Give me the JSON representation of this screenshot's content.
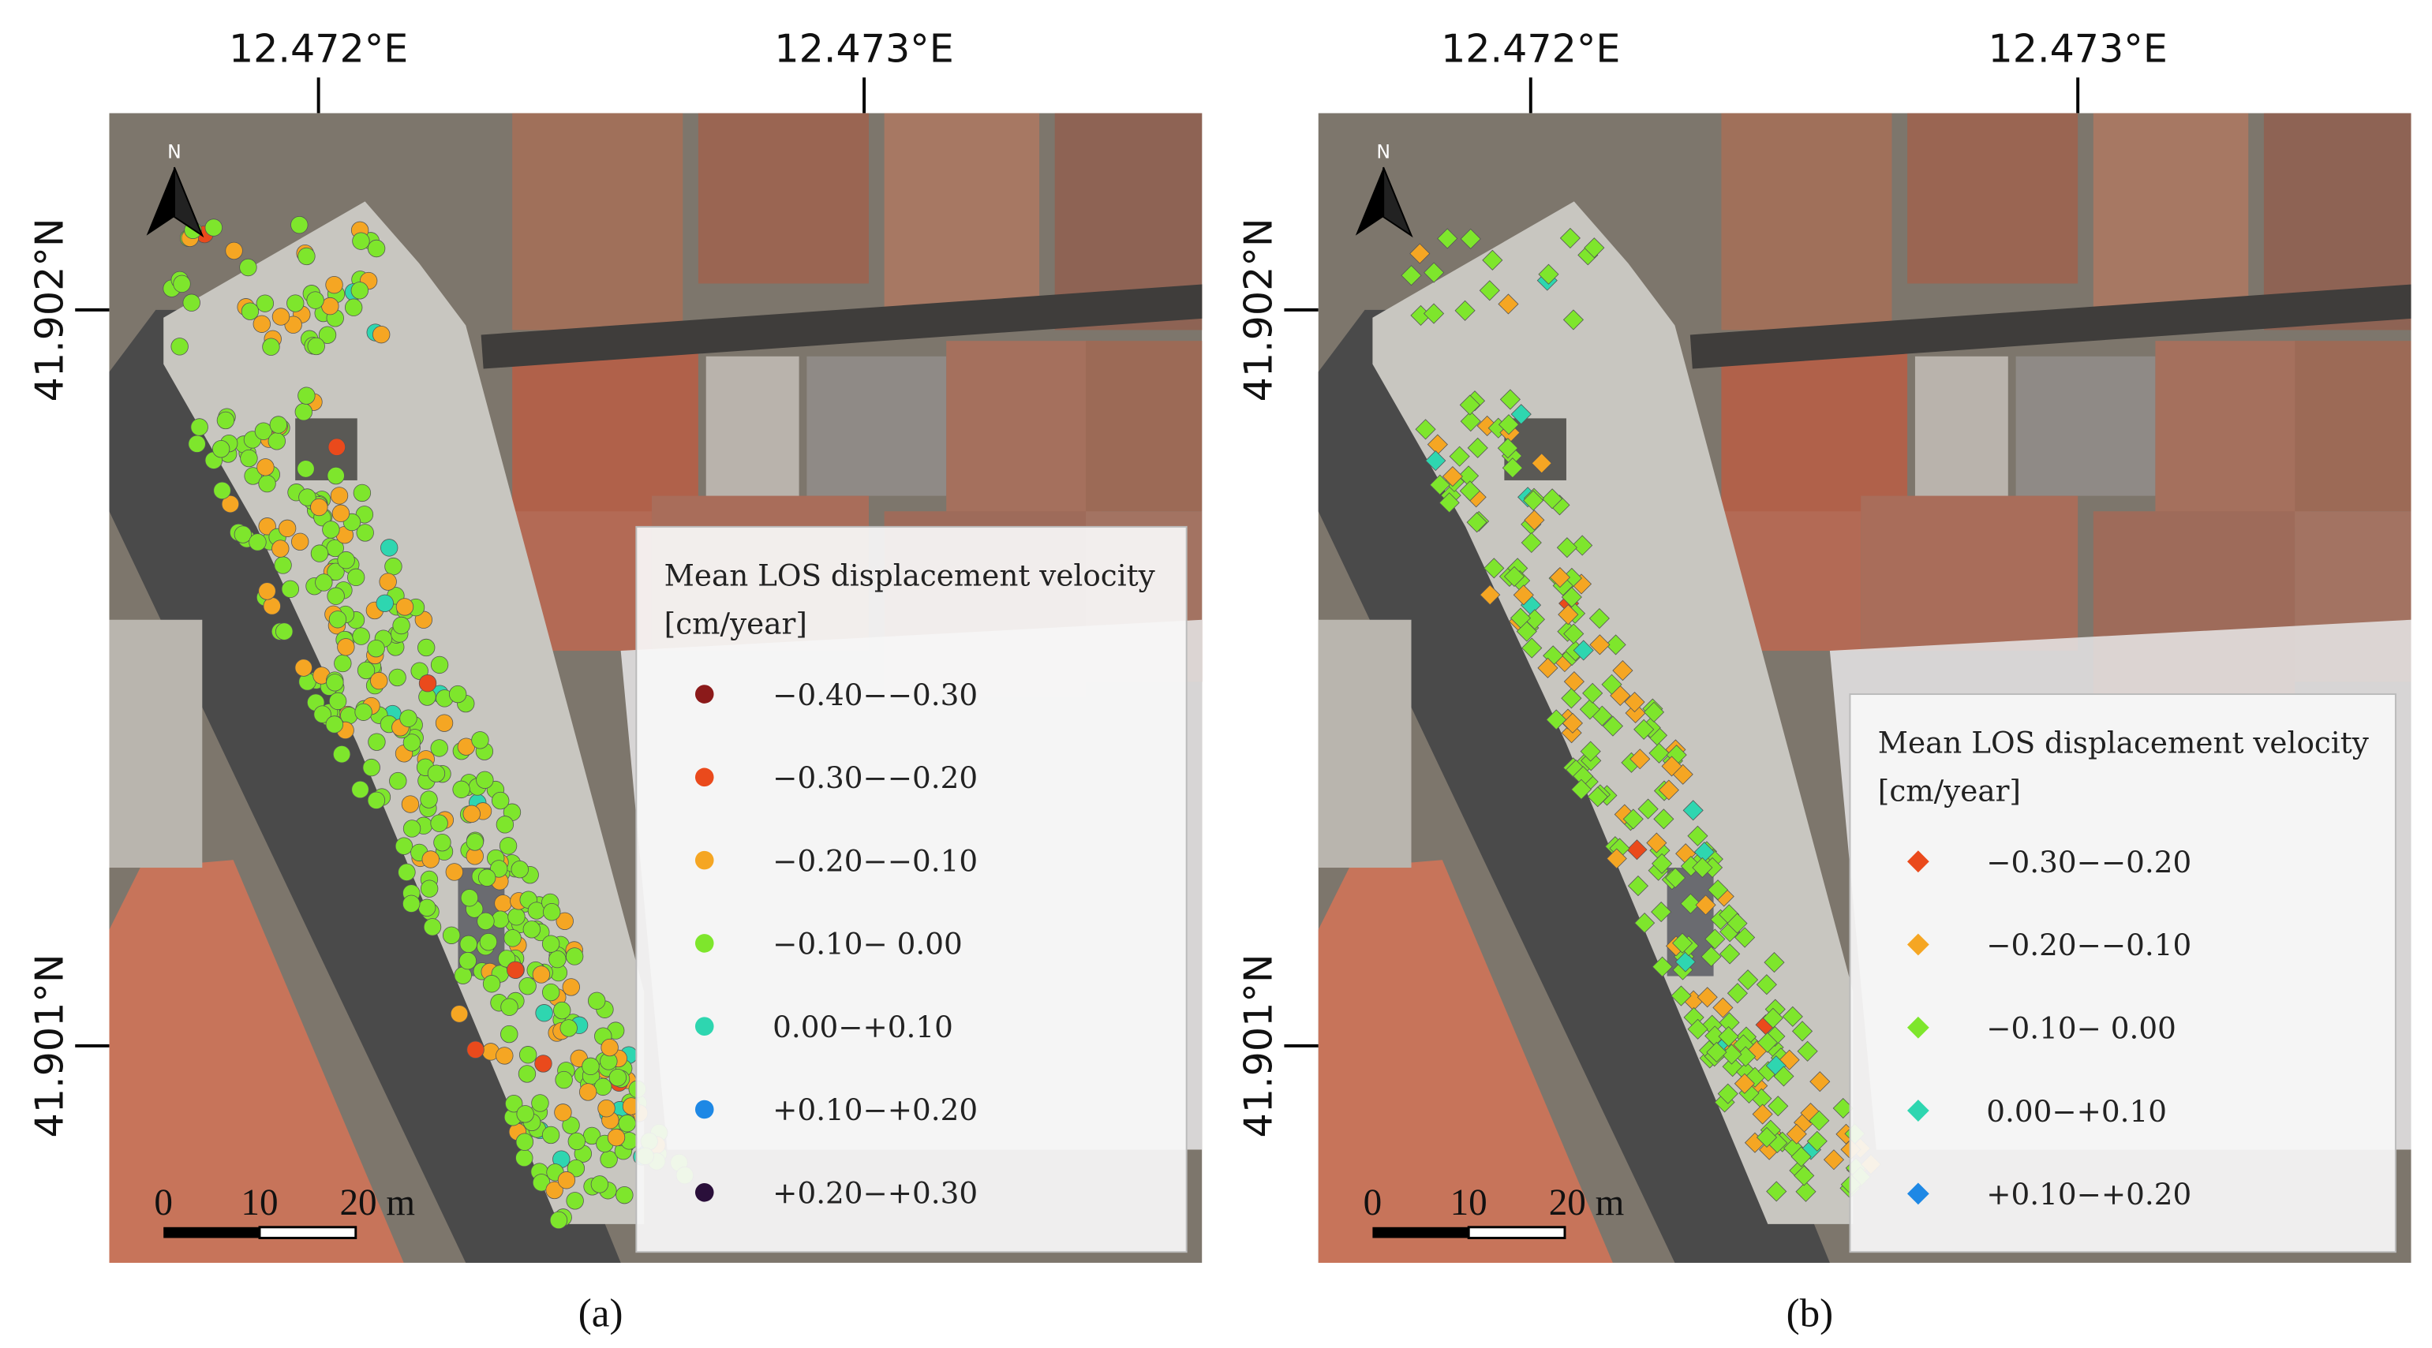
{
  "panels": [
    {
      "label": "(a)",
      "lon_ticks": [
        "12.472°E",
        "12.473°E"
      ],
      "lat_ticks": [
        "41.902°N",
        "41.901°N"
      ],
      "north": "N",
      "scale_bar": [
        "0",
        "10",
        "20 m"
      ],
      "legend": {
        "title": "Mean LOS displacement velocity",
        "unit": "[cm/year]",
        "marker": "circle",
        "items": [
          {
            "label": "−0.40−−0.30",
            "color": "#8b1a1a"
          },
          {
            "label": "−0.30−−0.20",
            "color": "#ea4a1c"
          },
          {
            "label": "−0.20−−0.10",
            "color": "#f5a623"
          },
          {
            "label": "−0.10− 0.00",
            "color": "#7ee62c"
          },
          {
            "label": "0.00−+0.10",
            "color": "#2ed6b0"
          },
          {
            "label": "+0.10−+0.20",
            "color": "#1e88e5"
          },
          {
            "label": "+0.20−+0.30",
            "color": "#2a0f3a"
          }
        ]
      }
    },
    {
      "label": "(b)",
      "lon_ticks": [
        "12.472°E",
        "12.473°E"
      ],
      "lat_ticks": [
        "41.902°N",
        "41.901°N"
      ],
      "north": "N",
      "scale_bar": [
        "0",
        "10",
        "20 m"
      ],
      "legend": {
        "title": "Mean LOS displacement velocity",
        "unit": "[cm/year]",
        "marker": "diamond",
        "items": [
          {
            "label": "−0.30−−0.20",
            "color": "#ea4a1c"
          },
          {
            "label": "−0.20−−0.10",
            "color": "#f5a623"
          },
          {
            "label": "−0.10− 0.00",
            "color": "#7ee62c"
          },
          {
            "label": "0.00−+0.10",
            "color": "#2ed6b0"
          },
          {
            "label": "+0.10−+0.20",
            "color": "#1e88e5"
          }
        ]
      }
    }
  ]
}
